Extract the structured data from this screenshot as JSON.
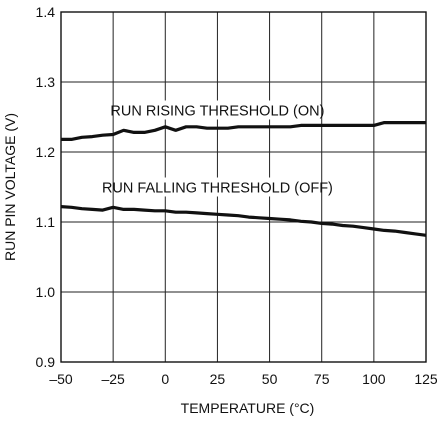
{
  "chart_data": {
    "type": "line",
    "xlabel": "TEMPERATURE (°C)",
    "ylabel": "RUN PIN VOLTAGE (V)",
    "xlim": [
      -50,
      125
    ],
    "ylim": [
      0.9,
      1.4
    ],
    "x_ticks": [
      "–50",
      "–25",
      "0",
      "25",
      "50",
      "75",
      "100",
      "125"
    ],
    "y_ticks": [
      "0.9",
      "1.0",
      "1.1",
      "1.2",
      "1.3",
      "1.4"
    ],
    "grid": true,
    "series": [
      {
        "name": "RUN RISING THRESHOLD (ON)",
        "x": [
          -50,
          -45,
          -40,
          -35,
          -30,
          -25,
          -20,
          -15,
          -10,
          -5,
          0,
          5,
          10,
          15,
          20,
          25,
          30,
          35,
          40,
          45,
          50,
          55,
          60,
          65,
          70,
          75,
          80,
          85,
          90,
          95,
          100,
          105,
          110,
          115,
          120,
          125
        ],
        "y": [
          1.218,
          1.218,
          1.221,
          1.222,
          1.224,
          1.225,
          1.231,
          1.228,
          1.228,
          1.231,
          1.236,
          1.231,
          1.236,
          1.236,
          1.234,
          1.234,
          1.234,
          1.236,
          1.236,
          1.236,
          1.236,
          1.236,
          1.236,
          1.238,
          1.238,
          1.238,
          1.238,
          1.238,
          1.238,
          1.238,
          1.238,
          1.242,
          1.242,
          1.242,
          1.242,
          1.242
        ]
      },
      {
        "name": "RUN FALLING THRESHOLD (OFF)",
        "x": [
          -50,
          -45,
          -40,
          -35,
          -30,
          -25,
          -20,
          -15,
          -10,
          -5,
          0,
          5,
          10,
          15,
          20,
          25,
          30,
          35,
          40,
          45,
          50,
          55,
          60,
          65,
          70,
          75,
          80,
          85,
          90,
          95,
          100,
          105,
          110,
          115,
          120,
          125
        ],
        "y": [
          1.122,
          1.121,
          1.119,
          1.118,
          1.117,
          1.121,
          1.118,
          1.118,
          1.117,
          1.116,
          1.116,
          1.114,
          1.114,
          1.113,
          1.112,
          1.111,
          1.11,
          1.109,
          1.107,
          1.106,
          1.105,
          1.104,
          1.103,
          1.101,
          1.1,
          1.098,
          1.097,
          1.095,
          1.094,
          1.092,
          1.09,
          1.088,
          1.087,
          1.085,
          1.083,
          1.081
        ]
      }
    ],
    "annotations": [
      {
        "text": "RUN RISING THRESHOLD (ON)",
        "x": 25,
        "y": 1.255
      },
      {
        "text": "RUN FALLING THRESHOLD (OFF)",
        "x": 25,
        "y": 1.145
      }
    ]
  }
}
